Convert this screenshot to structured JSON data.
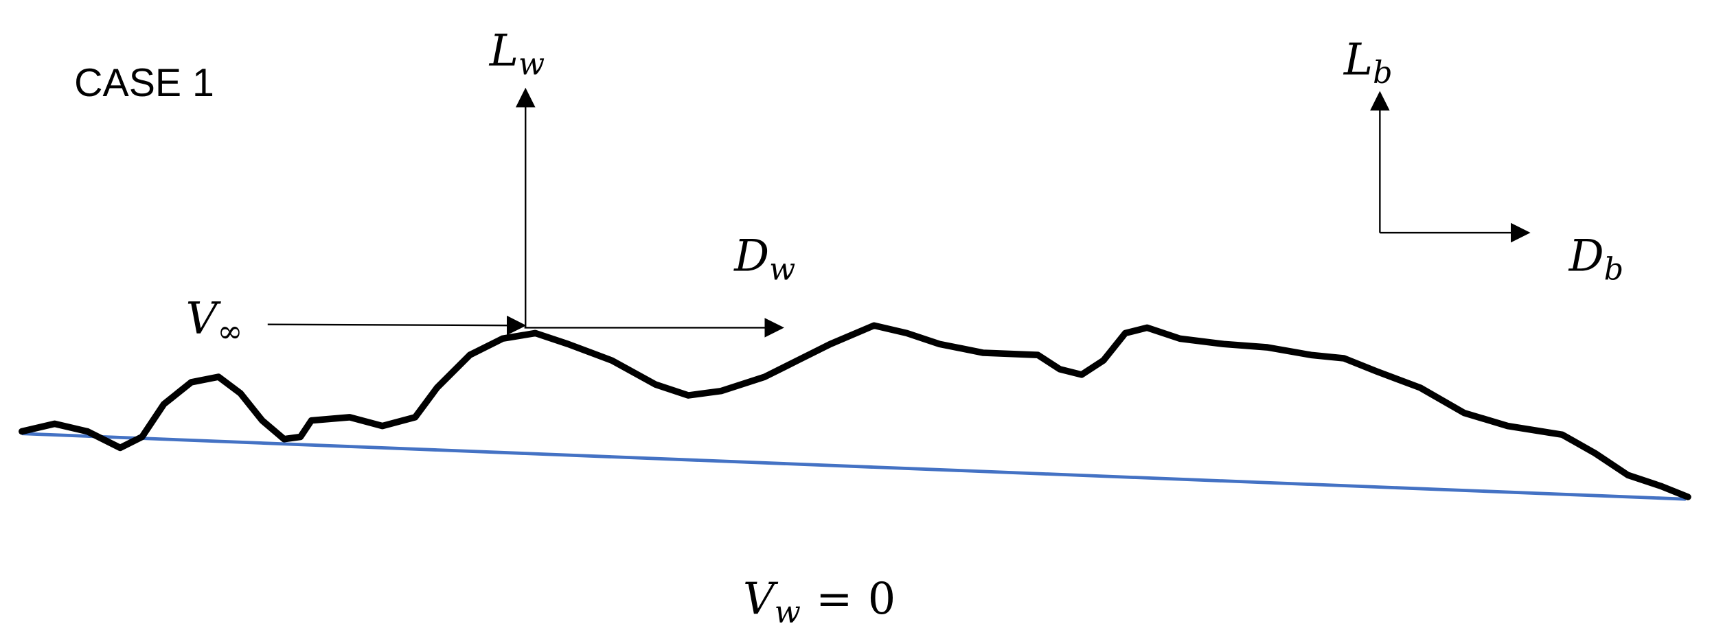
{
  "title": "CASE 1",
  "labels": {
    "wing_lift": {
      "symbol": "L",
      "subscript": "w"
    },
    "wing_drag": {
      "symbol": "D",
      "subscript": "w"
    },
    "body_lift": {
      "symbol": "L",
      "subscript": "b"
    },
    "body_drag": {
      "symbol": "D",
      "subscript": "b"
    },
    "freestream_velocity": {
      "symbol": "V",
      "subscript": "∞"
    }
  },
  "equation": {
    "lhs": {
      "symbol": "V",
      "subscript": "w"
    },
    "operator": "=",
    "rhs": 0
  }
}
